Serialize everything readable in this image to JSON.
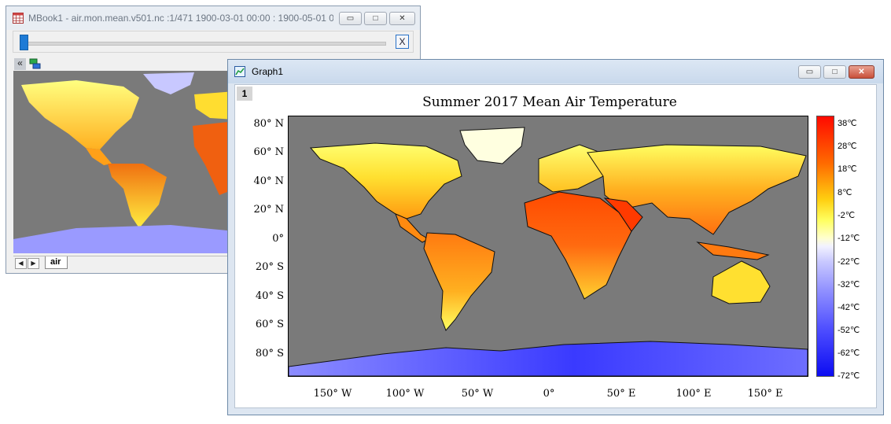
{
  "book_window": {
    "title": "MBook1 - air.mon.mean.v501.nc :1/471 1900-03-01 00:00 : 1900-05-01 0...",
    "slider_close_label": "X",
    "collapse_label": "«",
    "nav_prev": "◀",
    "nav_next": "▶",
    "sheet_tab": "air",
    "caption_buttons": {
      "minimize": "▭",
      "maximize": "□",
      "close": "✕"
    }
  },
  "graph_window": {
    "title": "Graph1",
    "layer_number": "1",
    "caption_buttons": {
      "minimize": "▭",
      "maximize": "□",
      "close": "✕"
    }
  },
  "chart_data": {
    "type": "heatmap",
    "title": "Summer 2017 Mean Air Temperature",
    "xlabel": "",
    "ylabel": "",
    "x_ticks": [
      "150° W",
      "100° W",
      "50° W",
      "0°",
      "50° E",
      "100° E",
      "150° E"
    ],
    "y_ticks": [
      "80° N",
      "60° N",
      "40° N",
      "20° N",
      "0°",
      "20° S",
      "40° S",
      "60° S",
      "80° S"
    ],
    "xlim": [
      -180,
      180
    ],
    "ylim": [
      -90,
      90
    ],
    "colorbar": {
      "labels": [
        "38℃",
        "28℃",
        "18℃",
        "8℃",
        "-2℃",
        "-12℃",
        "-22℃",
        "-32℃",
        "-42℃",
        "-52℃",
        "-62℃",
        "-72℃"
      ],
      "range": [
        -72,
        38
      ],
      "colors": [
        "#ff0a00",
        "#ff6a00",
        "#ffcf10",
        "#ffff60",
        "#ffffd0",
        "#f2f2ff",
        "#c8c8ff",
        "#8c8cff",
        "#4e4eff",
        "#0c0cf2"
      ]
    },
    "ocean_color": "#7a7a7a"
  }
}
